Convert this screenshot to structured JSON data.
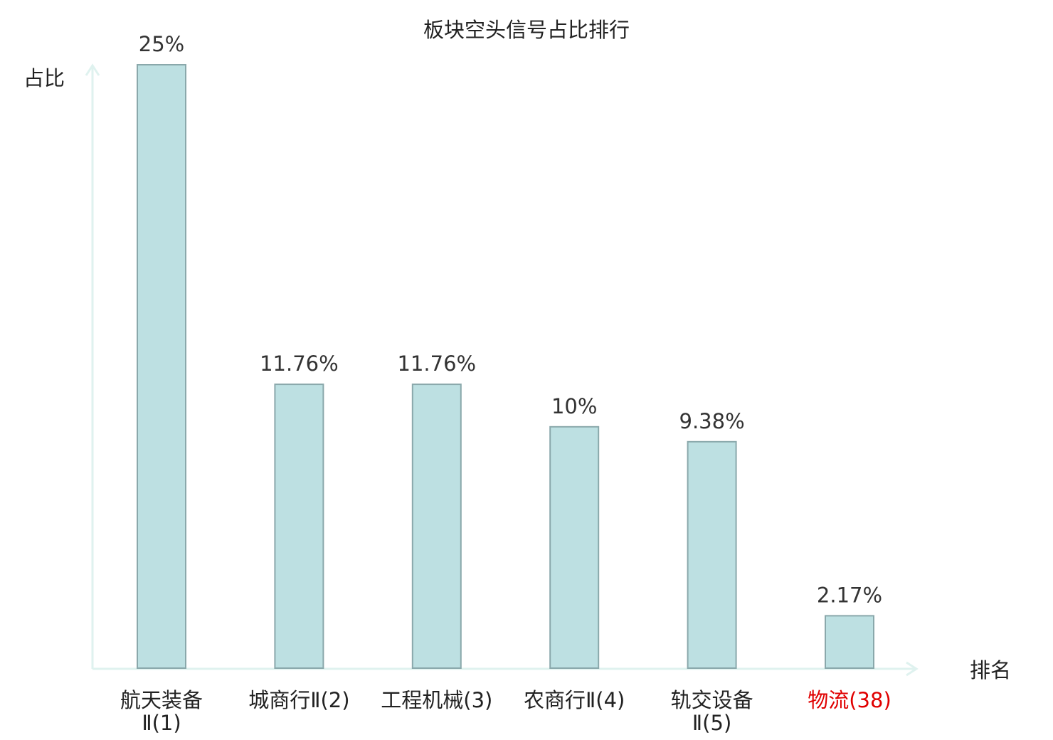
{
  "chart_data": {
    "type": "bar",
    "title": "板块空头信号占比排行",
    "ylabel": "占比",
    "xlabel": "排名",
    "ylim": [
      0,
      25
    ],
    "grid": false,
    "legend": "none",
    "categories": [
      {
        "lines": [
          "航天装备",
          "Ⅱ(1)"
        ],
        "highlight": false
      },
      {
        "lines": [
          "城商行Ⅱ(2)"
        ],
        "highlight": false
      },
      {
        "lines": [
          "工程机械(3)"
        ],
        "highlight": false
      },
      {
        "lines": [
          "农商行Ⅱ(4)"
        ],
        "highlight": false
      },
      {
        "lines": [
          "轨交设备",
          "Ⅱ(5)"
        ],
        "highlight": false
      },
      {
        "lines": [
          "物流(38)"
        ],
        "highlight": true
      }
    ],
    "values": [
      25,
      11.76,
      11.76,
      10,
      9.38,
      2.17
    ],
    "value_labels": [
      "25%",
      "11.76%",
      "11.76%",
      "10%",
      "9.38%",
      "2.17%"
    ]
  },
  "colors": {
    "bar_fill": "#bde0e2",
    "bar_stroke": "#8aa8ab",
    "axis": "#dff2ef",
    "highlight": "#e00000"
  }
}
